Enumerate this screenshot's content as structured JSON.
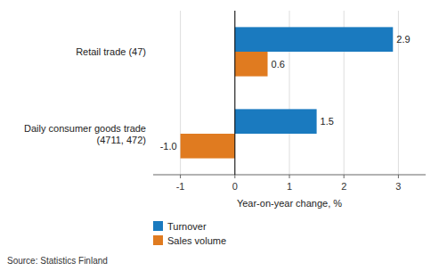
{
  "chart_data": {
    "type": "bar",
    "orientation": "horizontal",
    "categories": [
      "Daily consumer goods trade (4711, 472)",
      "Retail trade (47)"
    ],
    "series": [
      {
        "name": "Turnover",
        "color": "#1a7abf",
        "values": [
          1.5,
          2.9
        ],
        "value_labels": [
          "1.5",
          "2.9"
        ]
      },
      {
        "name": "Sales volume",
        "color": "#e07b20",
        "values": [
          -1.0,
          0.6
        ],
        "value_labels": [
          "-1.0",
          "0.6"
        ]
      }
    ],
    "xlabel": "Year-on-year change, %",
    "xlim": [
      -1.5,
      3.5
    ],
    "xticks": [
      -1,
      0,
      1,
      2,
      3
    ],
    "grid": true,
    "data_labels": true,
    "legend": "lower left",
    "source": "Source: Statistics Finland"
  }
}
